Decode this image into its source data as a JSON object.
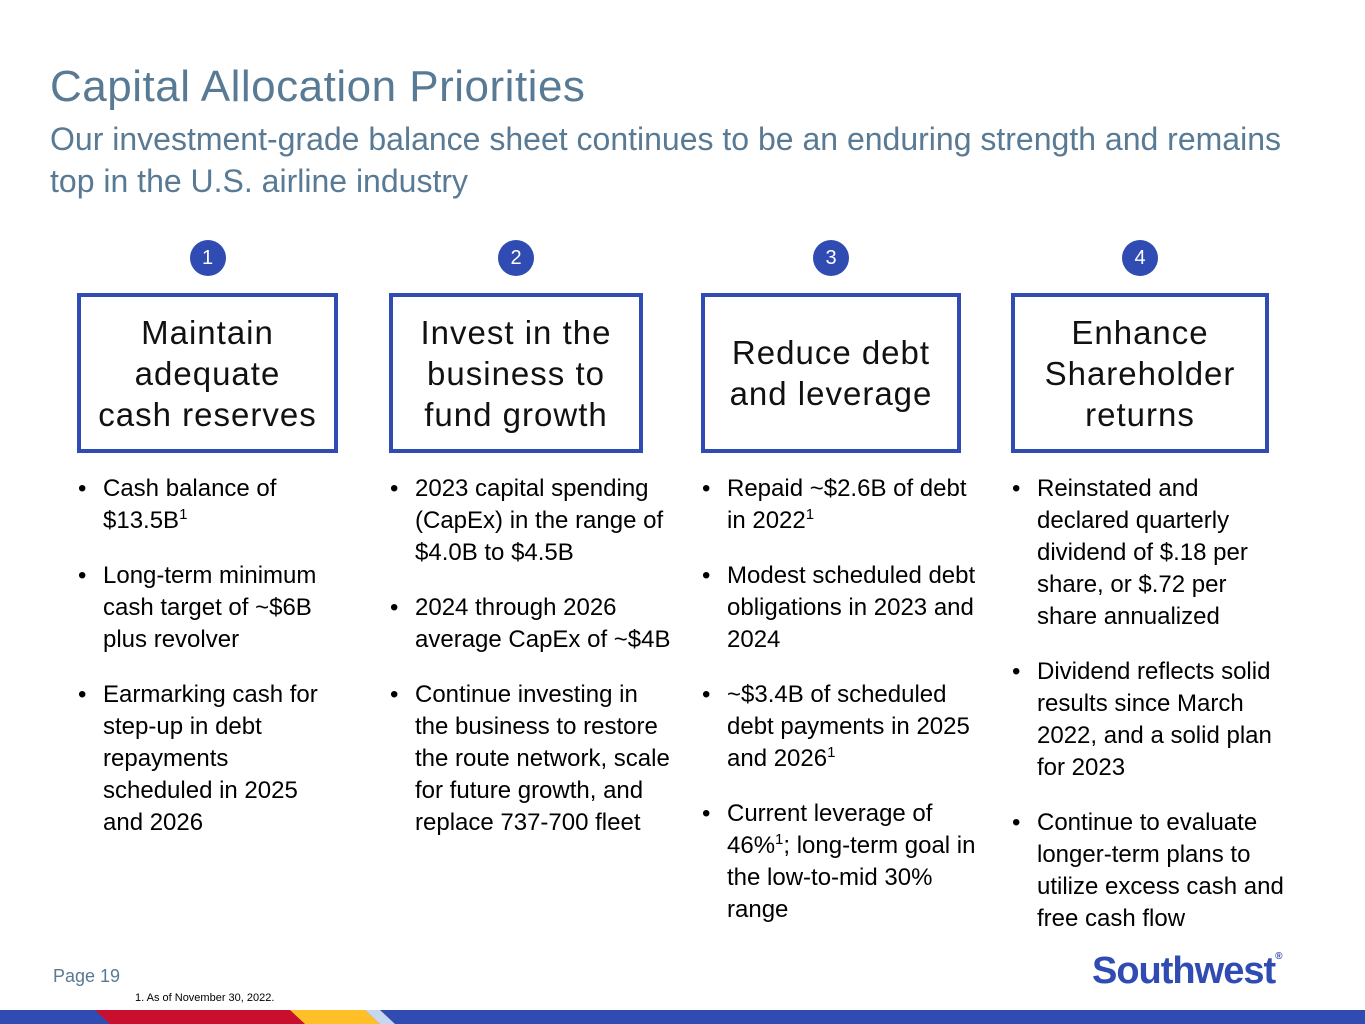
{
  "header": {
    "title": "Capital Allocation Priorities",
    "subtitle": "Our investment-grade balance sheet continues to be an enduring strength and remains top in the U.S. airline industry"
  },
  "columns": [
    {
      "number": "1",
      "heading": [
        "Maintain",
        "adequate",
        "cash reserves"
      ],
      "bullets": [
        [
          {
            "text": "Cash balance of $13.5B"
          },
          {
            "sup": "1"
          }
        ],
        [
          {
            "text": "Long-term minimum cash target of ~$6B plus revolver"
          }
        ],
        [
          {
            "text": "Earmarking cash for step-up in debt repayments scheduled in 2025 and 2026"
          }
        ]
      ]
    },
    {
      "number": "2",
      "heading": [
        "Invest in the",
        "business to",
        "fund growth"
      ],
      "bullets": [
        [
          {
            "text": "2023 capital spending (CapEx) in the range of $4.0B to $4.5B"
          }
        ],
        [
          {
            "text": "2024 through 2026 average CapEx of ~$4B"
          }
        ],
        [
          {
            "text": "Continue investing in the business to restore the route network, scale for future growth, and replace 737-700 fleet"
          }
        ]
      ]
    },
    {
      "number": "3",
      "heading": [
        "Reduce debt",
        "and leverage"
      ],
      "bullets": [
        [
          {
            "text": "Repaid ~$2.6B of debt in 2022"
          },
          {
            "sup": "1"
          }
        ],
        [
          {
            "text": "Modest scheduled debt obligations in 2023 and 2024"
          }
        ],
        [
          {
            "text": "~$3.4B of scheduled debt payments in 2025 and 2026"
          },
          {
            "sup": "1"
          }
        ],
        [
          {
            "text": "Current leverage of 46%"
          },
          {
            "sup": "1"
          },
          {
            "text": "; long-term goal in the low-to-mid 30% range"
          }
        ]
      ]
    },
    {
      "number": "4",
      "heading": [
        "Enhance",
        "Shareholder",
        "returns"
      ],
      "bullets": [
        [
          {
            "text": "Reinstated and declared quarterly dividend of $.18 per share, or $.72 per share annualized"
          }
        ],
        [
          {
            "text": "Dividend reflects solid results since March 2022, and a solid plan for 2023"
          }
        ],
        [
          {
            "text": "Continue to evaluate longer-term plans to utilize excess cash and free cash flow"
          }
        ]
      ]
    }
  ],
  "footer": {
    "page": "Page 19",
    "footnote": "1. As of November 30, 2022.",
    "logo": "Southwest",
    "logo_mark": "®"
  }
}
